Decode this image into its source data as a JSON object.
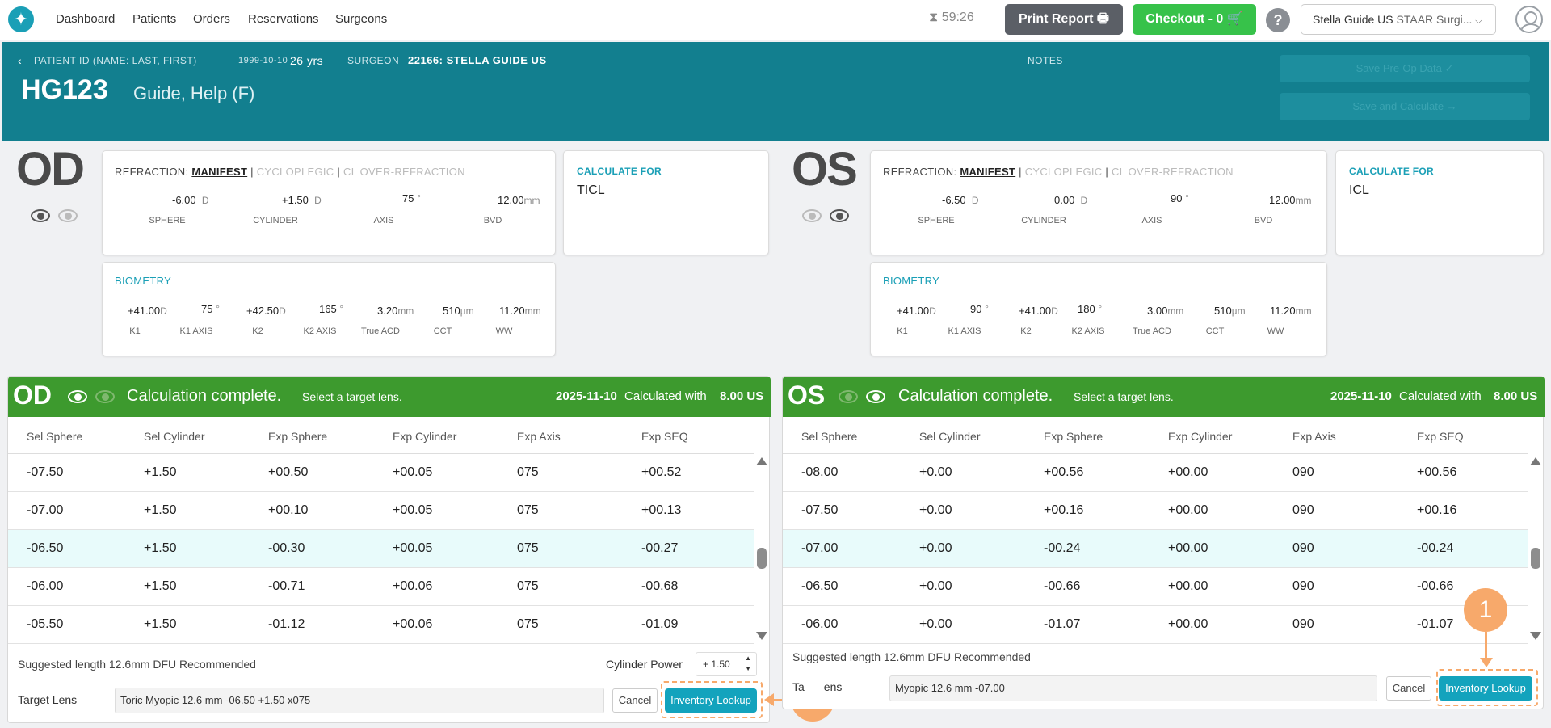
{
  "nav": {
    "logo_glyph": "✦",
    "links": [
      "Dashboard",
      "Patients",
      "Orders",
      "Reservations",
      "Surgeons"
    ],
    "timer": "59:26",
    "timer_icon": "hourglass-icon",
    "print_label": "Print Report",
    "print_icon": "printer-icon",
    "checkout_label": "Checkout - 0",
    "checkout_icon": "cart-icon",
    "help_label": "?",
    "site_name": "Stella Guide US",
    "site_company": "STAAR Surgi...",
    "user_icon": "user-avatar-icon"
  },
  "patient": {
    "id_label": "PATIENT ID (NAME: LAST, FIRST)",
    "dob": "1999-10-10",
    "age": "26 yrs",
    "surgeon_label": "SURGEON",
    "surgeon": "22166: STELLA GUIDE US",
    "notes_label": "NOTES",
    "id": "HG123",
    "name": "Guide,  Help  (F)",
    "save_preop_label": "Save Pre-Op Data ✓",
    "save_calc_label": "Save and Calculate →"
  },
  "refraction_tabs": [
    "MANIFEST",
    "CYCLOPLEGIC",
    "CL OVER-REFRACTION"
  ],
  "refraction_labels": [
    "SPHERE",
    "CYLINDER",
    "AXIS",
    "BVD"
  ],
  "biometry_labels": [
    "K1",
    "K1 AXIS",
    "K2",
    "K2 AXIS",
    "True ACD",
    "CCT",
    "WW"
  ],
  "biometry_title": "BIOMETRY",
  "refraction_title": "REFRACTION:",
  "calc_for_title": "CALCULATE FOR",
  "od": {
    "eye": "OD",
    "refraction": {
      "sphere": "-6.00",
      "cylinder": "+1.50",
      "axis": "75",
      "bvd": "12.00"
    },
    "biometry": {
      "k1": "+41.00",
      "k1_axis": "75",
      "k2": "+42.50",
      "k2_axis": "165",
      "acd": "3.20",
      "cct": "510",
      "ww": "11.20"
    },
    "calc_for": "TICL"
  },
  "os": {
    "eye": "OS",
    "refraction": {
      "sphere": "-6.50",
      "cylinder": "0.00",
      "axis": "90",
      "bvd": "12.00"
    },
    "biometry": {
      "k1": "+41.00",
      "k1_axis": "90",
      "k2": "+41.00",
      "k2_axis": "180",
      "acd": "3.00",
      "cct": "510",
      "ww": "11.20"
    },
    "calc_for": "ICL"
  },
  "units": {
    "d": "D",
    "deg": "°",
    "mm": "mm",
    "um": "µm"
  },
  "calc": {
    "complete": "Calculation complete.",
    "select": "Select a target lens.",
    "date": "2025-11-10",
    "calc_with": "Calculated with",
    "version": "8.00 US",
    "headers": [
      "Sel Sphere",
      "Sel Cylinder",
      "Exp Sphere",
      "Exp Cylinder",
      "Exp Axis",
      "Exp SEQ"
    ],
    "suggest": "Suggested length 12.6mm DFU Recommended",
    "target_label": "Target Lens",
    "cancel": "Cancel",
    "inventory": "Inventory Lookup",
    "callout": "1"
  },
  "od_calc": {
    "rows": [
      [
        "-07.50",
        "+1.50",
        "+00.50",
        "+00.05",
        "075",
        "+00.52"
      ],
      [
        "-07.00",
        "+1.50",
        "+00.10",
        "+00.05",
        "075",
        "+00.13"
      ],
      [
        "-06.50",
        "+1.50",
        "-00.30",
        "+00.05",
        "075",
        "-00.27"
      ],
      [
        "-06.00",
        "+1.50",
        "-00.71",
        "+00.06",
        "075",
        "-00.68"
      ],
      [
        "-05.50",
        "+1.50",
        "-01.12",
        "+00.06",
        "075",
        "-01.09"
      ]
    ],
    "selected_index": 2,
    "cyl_label": "Cylinder Power",
    "cyl_value": "+ 1.50",
    "target_value": "Toric Myopic 12.6 mm -06.50 +1.50 x075"
  },
  "os_calc": {
    "rows": [
      [
        "-08.00",
        "+0.00",
        "+00.56",
        "+00.00",
        "090",
        "+00.56"
      ],
      [
        "-07.50",
        "+0.00",
        "+00.16",
        "+00.00",
        "090",
        "+00.16"
      ],
      [
        "-07.00",
        "+0.00",
        "-00.24",
        "+00.00",
        "090",
        "-00.24"
      ],
      [
        "-06.50",
        "+0.00",
        "-00.66",
        "+00.00",
        "090",
        "-00.66"
      ],
      [
        "-06.00",
        "+0.00",
        "-01.07",
        "+00.00",
        "090",
        "-01.07"
      ]
    ],
    "selected_index": 2,
    "target_label_partial": "Ta",
    "target_label_partial2": "ens",
    "target_value": "Myopic 12.6 mm -07.00"
  },
  "colors": {
    "teal_header": "#127f8f",
    "green_bar": "#3d9a2e",
    "accent": "#1a9fb6",
    "highlight": "#f7a96b",
    "checkout": "#37c24a"
  }
}
